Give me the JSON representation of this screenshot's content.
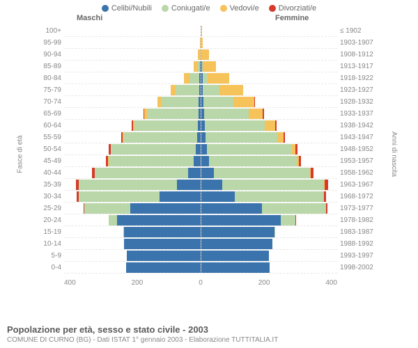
{
  "legend": [
    {
      "label": "Celibi/Nubili",
      "color": "#3b74ad"
    },
    {
      "label": "Coniugati/e",
      "color": "#b9d7a8"
    },
    {
      "label": "Vedovi/e",
      "color": "#f6c35b"
    },
    {
      "label": "Divorziati/e",
      "color": "#d53a2a"
    }
  ],
  "titles": {
    "m": "Maschi",
    "f": "Femmine",
    "yr_first": "≤ 1902"
  },
  "ylabels": {
    "left": "Fasce di età",
    "right": "Anni di nascita"
  },
  "xaxis": {
    "max": 400,
    "ticks": [
      "400",
      "200",
      "0",
      "200",
      "400"
    ]
  },
  "colors": {
    "single": "#3b74ad",
    "married": "#b9d7a8",
    "widowed": "#f6c35b",
    "divorced": "#d53a2a",
    "grid": "#e8e8e8",
    "text": "#888888"
  },
  "rows": [
    {
      "age": "100+",
      "yr": "≤ 1902",
      "m": [
        0,
        0,
        0,
        0
      ],
      "f": [
        0,
        0,
        2,
        0
      ]
    },
    {
      "age": "95-99",
      "yr": "1903-1907",
      "m": [
        0,
        0,
        2,
        0
      ],
      "f": [
        0,
        0,
        5,
        0
      ]
    },
    {
      "age": "90-94",
      "yr": "1908-1912",
      "m": [
        0,
        0,
        8,
        0
      ],
      "f": [
        2,
        0,
        22,
        0
      ]
    },
    {
      "age": "85-89",
      "yr": "1913-1917",
      "m": [
        2,
        5,
        12,
        0
      ],
      "f": [
        3,
        3,
        38,
        0
      ]
    },
    {
      "age": "80-84",
      "yr": "1918-1922",
      "m": [
        3,
        28,
        18,
        0
      ],
      "f": [
        5,
        15,
        62,
        0
      ]
    },
    {
      "age": "75-79",
      "yr": "1923-1927",
      "m": [
        4,
        68,
        15,
        0
      ],
      "f": [
        6,
        48,
        70,
        0
      ]
    },
    {
      "age": "70-74",
      "yr": "1928-1932",
      "m": [
        5,
        108,
        12,
        0
      ],
      "f": [
        8,
        88,
        60,
        2
      ]
    },
    {
      "age": "65-69",
      "yr": "1933-1937",
      "m": [
        6,
        150,
        8,
        2
      ],
      "f": [
        10,
        130,
        42,
        3
      ]
    },
    {
      "age": "60-64",
      "yr": "1938-1942",
      "m": [
        8,
        185,
        5,
        3
      ],
      "f": [
        12,
        175,
        30,
        4
      ]
    },
    {
      "age": "55-59",
      "yr": "1943-1947",
      "m": [
        10,
        215,
        3,
        4
      ],
      "f": [
        14,
        210,
        18,
        5
      ]
    },
    {
      "age": "50-54",
      "yr": "1948-1952",
      "m": [
        14,
        248,
        2,
        5
      ],
      "f": [
        18,
        250,
        10,
        6
      ]
    },
    {
      "age": "45-49",
      "yr": "1953-1957",
      "m": [
        20,
        250,
        1,
        6
      ],
      "f": [
        24,
        258,
        5,
        7
      ]
    },
    {
      "age": "40-44",
      "yr": "1958-1962",
      "m": [
        35,
        275,
        0,
        8
      ],
      "f": [
        38,
        282,
        3,
        8
      ]
    },
    {
      "age": "35-39",
      "yr": "1963-1967",
      "m": [
        68,
        290,
        0,
        8
      ],
      "f": [
        62,
        300,
        2,
        9
      ]
    },
    {
      "age": "30-34",
      "yr": "1968-1972",
      "m": [
        120,
        238,
        0,
        6
      ],
      "f": [
        100,
        260,
        1,
        7
      ]
    },
    {
      "age": "25-29",
      "yr": "1973-1977",
      "m": [
        205,
        135,
        0,
        3
      ],
      "f": [
        180,
        188,
        0,
        4
      ]
    },
    {
      "age": "20-24",
      "yr": "1978-1982",
      "m": [
        245,
        25,
        0,
        0
      ],
      "f": [
        235,
        42,
        0,
        1
      ]
    },
    {
      "age": "15-19",
      "yr": "1983-1987",
      "m": [
        225,
        1,
        0,
        0
      ],
      "f": [
        215,
        2,
        0,
        0
      ]
    },
    {
      "age": "10-14",
      "yr": "1988-1992",
      "m": [
        225,
        0,
        0,
        0
      ],
      "f": [
        210,
        0,
        0,
        0
      ]
    },
    {
      "age": "5-9",
      "yr": "1993-1997",
      "m": [
        215,
        0,
        0,
        0
      ],
      "f": [
        200,
        0,
        0,
        0
      ]
    },
    {
      "age": "0-4",
      "yr": "1998-2002",
      "m": [
        218,
        0,
        0,
        0
      ],
      "f": [
        202,
        0,
        0,
        0
      ]
    }
  ],
  "footer": {
    "line1": "Popolazione per età, sesso e stato civile - 2003",
    "line2": "COMUNE DI CURNO (BG) - Dati ISTAT 1° gennaio 2003 - Elaborazione TUTTITALIA.IT"
  }
}
